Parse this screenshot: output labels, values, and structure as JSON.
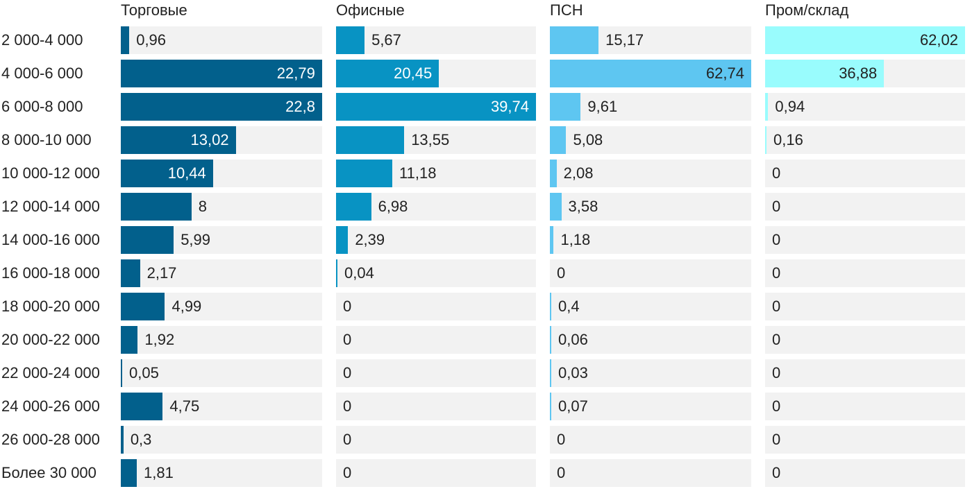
{
  "chart_data": {
    "type": "bar",
    "orientation": "horizontal",
    "layout": "small-multiples",
    "categories": [
      "2 000-4 000",
      "4 000-6 000",
      "6 000-8 000",
      "8 000-10 000",
      "10 000-12 000",
      "12 000-14 000",
      "14 000-16 000",
      "16 000-18 000",
      "18 000-20 000",
      "20 000-22 000",
      "22 000-24 000",
      "24 000-26 000",
      "26 000-28 000",
      "Более 30 000"
    ],
    "series": [
      {
        "name": "Торговые",
        "color": "#02608c",
        "values": [
          0.96,
          22.79,
          22.8,
          13.02,
          10.44,
          8,
          5.99,
          2.17,
          4.99,
          1.92,
          0.05,
          4.75,
          0.3,
          1.81
        ],
        "labels": [
          "0,96",
          "22,79",
          "22,8",
          "13,02",
          "10,44",
          "8",
          "5,99",
          "2,17",
          "4,99",
          "1,92",
          "0,05",
          "4,75",
          "0,3",
          "1,81"
        ]
      },
      {
        "name": "Офисные",
        "color": "#0893c3",
        "values": [
          5.67,
          20.45,
          39.74,
          13.55,
          11.18,
          6.98,
          2.39,
          0.04,
          0,
          0,
          0,
          0,
          0,
          0
        ],
        "labels": [
          "5,67",
          "20,45",
          "39,74",
          "13,55",
          "11,18",
          "6,98",
          "2,39",
          "0,04",
          "0",
          "0",
          "0",
          "0",
          "0",
          "0"
        ]
      },
      {
        "name": "ПСН",
        "color": "#5ec6f1",
        "values": [
          15.17,
          62.74,
          9.61,
          5.08,
          2.08,
          3.58,
          1.18,
          0,
          0.4,
          0.06,
          0.03,
          0.07,
          0,
          0
        ],
        "labels": [
          "15,17",
          "62,74",
          "9,61",
          "5,08",
          "2,08",
          "3,58",
          "1,18",
          "0",
          "0,4",
          "0,06",
          "0,03",
          "0,07",
          "0",
          "0"
        ]
      },
      {
        "name": "Пром/склад",
        "color": "#99fcfd",
        "values": [
          62.02,
          36.88,
          0.94,
          0.16,
          0,
          0,
          0,
          0,
          0,
          0,
          0,
          0,
          0,
          0
        ],
        "labels": [
          "62,02",
          "36,88",
          "0,94",
          "0,16",
          "0",
          "0",
          "0",
          "0",
          "0",
          "0",
          "0",
          "0",
          "0",
          "0"
        ]
      }
    ],
    "track_color": "#f2f2f2",
    "legend": "none",
    "grid": false
  }
}
